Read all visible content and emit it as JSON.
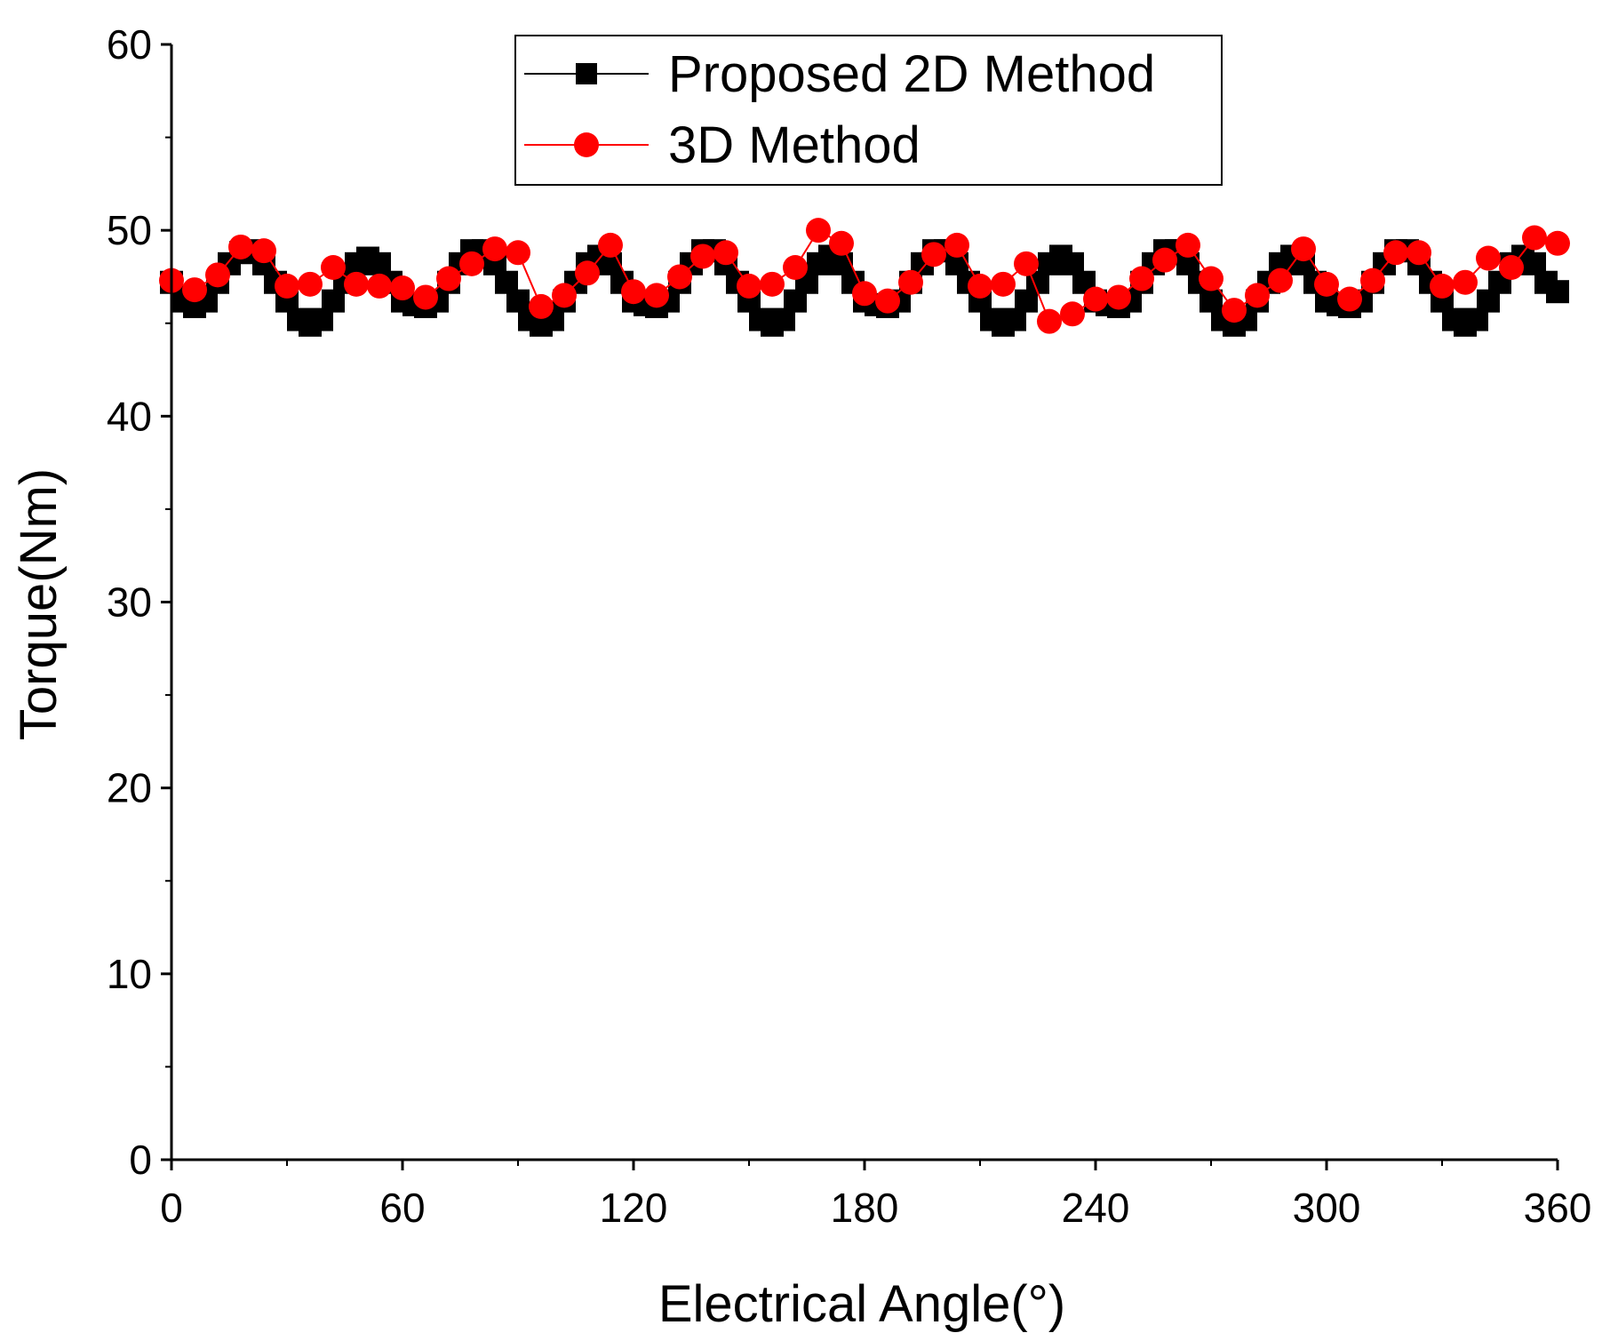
{
  "chart_data": {
    "type": "line",
    "title": "",
    "xlabel": "Electrical Angle(°)",
    "ylabel": "Torque(Nm)",
    "xlim": [
      0,
      360
    ],
    "ylim": [
      0,
      60
    ],
    "xticks": [
      0,
      60,
      120,
      180,
      240,
      300,
      360
    ],
    "yticks": [
      0,
      10,
      20,
      30,
      40,
      50,
      60
    ],
    "xtick_labels": [
      "0",
      "60",
      "120",
      "180",
      "240",
      "300",
      "360"
    ],
    "ytick_labels": [
      "0",
      "10",
      "20",
      "30",
      "40",
      "50",
      "60"
    ],
    "grid": false,
    "legend_position": "top-center",
    "series": [
      {
        "name": "Proposed 2D Method",
        "color": "#000000",
        "marker": "square",
        "x": [
          0,
          3,
          6,
          9,
          12,
          15,
          18,
          21,
          24,
          27,
          30,
          33,
          36,
          39,
          42,
          45,
          48,
          51,
          54,
          57,
          60,
          63,
          66,
          69,
          72,
          75,
          78,
          81,
          84,
          87,
          90,
          93,
          96,
          99,
          102,
          105,
          108,
          111,
          114,
          117,
          120,
          123,
          126,
          129,
          132,
          135,
          138,
          141,
          144,
          147,
          150,
          153,
          156,
          159,
          162,
          165,
          168,
          171,
          174,
          177,
          180,
          183,
          186,
          189,
          192,
          195,
          198,
          201,
          204,
          207,
          210,
          213,
          216,
          219,
          222,
          225,
          228,
          231,
          234,
          237,
          240,
          243,
          246,
          249,
          252,
          255,
          258,
          261,
          264,
          267,
          270,
          273,
          276,
          279,
          282,
          285,
          288,
          291,
          294,
          297,
          300,
          303,
          306,
          309,
          312,
          315,
          318,
          321,
          324,
          327,
          330,
          333,
          336,
          339,
          342,
          345,
          348,
          351,
          354,
          357,
          360
        ],
        "y": [
          47.2,
          46.2,
          45.9,
          46.2,
          47.2,
          48.2,
          48.8,
          48.9,
          48.2,
          47.2,
          46.2,
          45.2,
          44.9,
          45.2,
          46.2,
          47.2,
          48.2,
          48.5,
          48.2,
          47.2,
          46.2,
          46.0,
          45.9,
          46.2,
          47.2,
          48.2,
          48.9,
          48.9,
          48.2,
          47.2,
          46.2,
          45.2,
          44.9,
          45.2,
          46.2,
          47.2,
          48.2,
          48.6,
          48.2,
          47.2,
          46.2,
          46.0,
          45.9,
          46.2,
          47.2,
          48.2,
          48.9,
          48.9,
          48.2,
          47.2,
          46.2,
          45.2,
          44.9,
          45.2,
          46.2,
          47.2,
          48.2,
          48.6,
          48.2,
          47.2,
          46.2,
          46.0,
          45.9,
          46.2,
          47.2,
          48.2,
          48.9,
          48.9,
          48.2,
          47.2,
          46.2,
          45.2,
          44.9,
          45.2,
          46.2,
          47.2,
          48.2,
          48.6,
          48.2,
          47.2,
          46.2,
          46.0,
          45.9,
          46.2,
          47.2,
          48.2,
          48.9,
          48.9,
          48.2,
          47.2,
          46.2,
          45.2,
          44.9,
          45.2,
          46.2,
          47.2,
          48.2,
          48.6,
          48.2,
          47.2,
          46.2,
          46.0,
          45.9,
          46.2,
          47.2,
          48.2,
          48.9,
          48.9,
          48.2,
          47.2,
          46.2,
          45.2,
          44.9,
          45.2,
          46.2,
          47.2,
          48.2,
          48.6,
          48.2,
          47.2,
          46.7
        ]
      },
      {
        "name": "3D Method",
        "color": "#ff0000",
        "marker": "circle",
        "x": [
          0,
          6,
          12,
          18,
          24,
          30,
          36,
          42,
          48,
          54,
          60,
          66,
          72,
          78,
          84,
          90,
          96,
          102,
          108,
          114,
          120,
          126,
          132,
          138,
          144,
          150,
          156,
          162,
          168,
          174,
          180,
          186,
          192,
          198,
          204,
          210,
          216,
          222,
          228,
          234,
          240,
          246,
          252,
          258,
          264,
          270,
          276,
          282,
          288,
          294,
          300,
          306,
          312,
          318,
          324,
          330,
          336,
          342,
          348,
          354,
          360
        ],
        "y": [
          47.3,
          46.8,
          47.6,
          49.1,
          48.9,
          47.0,
          47.1,
          48.0,
          47.1,
          47.0,
          46.9,
          46.4,
          47.4,
          48.2,
          49.0,
          48.8,
          45.9,
          46.5,
          47.7,
          49.2,
          46.7,
          46.5,
          47.5,
          48.6,
          48.8,
          47.0,
          47.1,
          48.0,
          50.0,
          49.3,
          46.6,
          46.2,
          47.2,
          48.7,
          49.2,
          47.0,
          47.1,
          48.2,
          45.1,
          45.5,
          46.3,
          46.4,
          47.4,
          48.4,
          49.2,
          47.4,
          45.7,
          46.5,
          47.3,
          49.0,
          47.1,
          46.3,
          47.3,
          48.8,
          48.8,
          47.0,
          47.2,
          48.5,
          48.0,
          49.6,
          49.3
        ]
      }
    ]
  }
}
